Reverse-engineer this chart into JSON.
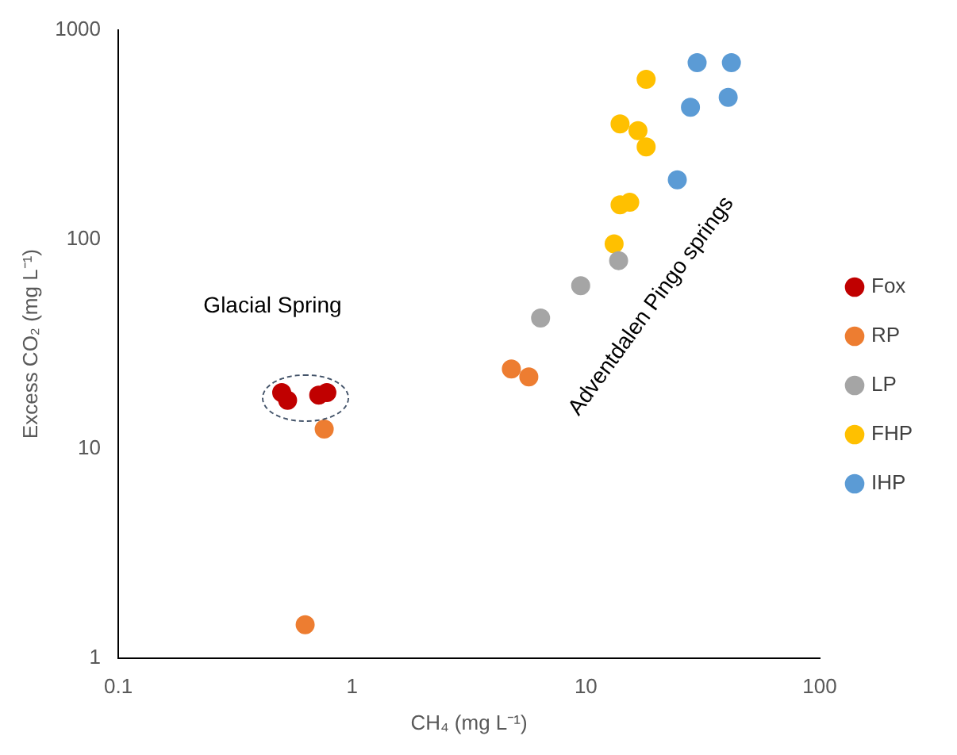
{
  "chart_data": {
    "type": "scatter",
    "xlabel": "CH₄ (mg L⁻¹)",
    "ylabel": "Excess CO₂ (mg L⁻¹)",
    "log": "xy",
    "xlim": [
      0.1,
      100
    ],
    "ylim": [
      1,
      1000
    ],
    "xticks": [
      0.1,
      1,
      10,
      100
    ],
    "yticks": [
      1,
      10,
      100,
      1000
    ],
    "grid": false,
    "legend": "right",
    "marker": "circle",
    "series": [
      {
        "name": "Fox",
        "color": "#c00000",
        "x": [
          0.5,
          0.53,
          0.68,
          0.72,
          0.78
        ],
        "values": [
          18.5,
          17,
          null,
          18,
          18.5
        ]
      },
      {
        "name": "RP",
        "color": "#ed7d31",
        "x": [
          0.76,
          4.8,
          5.7,
          0.63
        ],
        "values": [
          12.4,
          24,
          22,
          1.44
        ]
      },
      {
        "name": "LP",
        "color": "#a5a5a5",
        "x": [
          6.4,
          9.5,
          13.8
        ],
        "values": [
          42,
          60,
          79
        ]
      },
      {
        "name": "FHP",
        "color": "#ffc000",
        "x": [
          13.2,
          14,
          15.4,
          14,
          16.7,
          18.1,
          18.1
        ],
        "values": [
          95,
          146,
          150,
          355,
          330,
          276,
          580
        ]
      },
      {
        "name": "IHP",
        "color": "#5b9bd5",
        "x": [
          29.9,
          41.9,
          28,
          40.6,
          24.6
        ],
        "values": [
          697,
          697,
          427,
          476,
          192
        ]
      }
    ],
    "annotations": [
      "Glacial Spring",
      "Adventdalen Pingo springs"
    ]
  }
}
